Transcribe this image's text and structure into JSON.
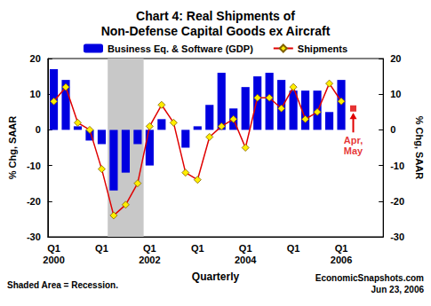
{
  "chart_data": {
    "type": "bar",
    "title": "Chart 4: Real Shipments of\nNon-Defense Capital Goods ex Aircraft",
    "categories": [
      "Q1\n2000",
      null,
      null,
      null,
      "Q1",
      null,
      null,
      null,
      "Q1\n2002",
      null,
      null,
      null,
      "Q1",
      null,
      null,
      null,
      "Q1\n2004",
      null,
      null,
      null,
      "Q1",
      null,
      null,
      null,
      "Q1\n2006",
      null,
      null,
      null
    ],
    "series": [
      {
        "name": "Business Eq. & Software (GDP)",
        "type": "bar",
        "color": "#0000e0",
        "values": [
          17,
          14,
          1,
          -3,
          -4,
          -17,
          -12,
          -4,
          -10,
          3,
          0,
          -5,
          1,
          7,
          16,
          6,
          12,
          15,
          16,
          14,
          11,
          11,
          11,
          5,
          14,
          null,
          null,
          null
        ]
      },
      {
        "name": "Shipments",
        "type": "line",
        "color": "#e00000",
        "marker": "diamond",
        "values": [
          8,
          12,
          2,
          0,
          -11,
          -24,
          -21,
          -15,
          1,
          7,
          2,
          -12,
          -14,
          -2,
          1,
          3,
          -5,
          9,
          9,
          6,
          12,
          3,
          5,
          13,
          8,
          null,
          null,
          null
        ]
      },
      {
        "name": "Apr,\nMay",
        "type": "scatter",
        "color": "#e00000",
        "marker": "rect",
        "values": [
          null,
          null,
          null,
          null,
          null,
          null,
          null,
          null,
          null,
          null,
          null,
          null,
          null,
          null,
          null,
          null,
          null,
          null,
          null,
          null,
          null,
          null,
          null,
          null,
          null,
          6,
          null,
          null
        ]
      }
    ],
    "recession": [
      5,
      7
    ],
    "ylim": [
      -30,
      20
    ],
    "yticks": [
      -30,
      -20,
      -10,
      0,
      10,
      20
    ],
    "y2lim": [
      -30,
      20
    ],
    "y2ticks": [
      -30,
      -20,
      -10,
      0,
      10,
      20
    ],
    "ylabel": "% Chg, SAAR",
    "y2label": "% Chg, SAAR",
    "xlabel": "Quarterly",
    "note": "Shaded Area = Recession.",
    "source": "EconomicSnapshots.com",
    "date": "Jun 23, 2006",
    "grid": false,
    "legend": "top"
  }
}
